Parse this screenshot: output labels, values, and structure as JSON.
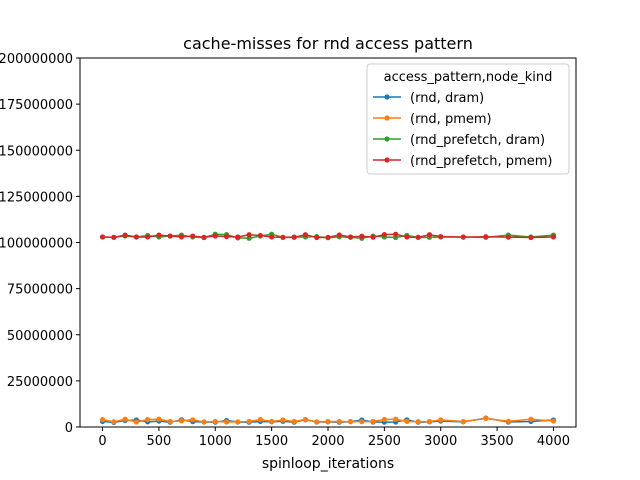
{
  "chart_data": {
    "type": "line",
    "title": "cache-misses for rnd access pattern",
    "xlabel": "spinloop_iterations",
    "ylabel": "",
    "xlim": [
      -200,
      4200
    ],
    "ylim": [
      0,
      200000000
    ],
    "xticks": [
      0,
      500,
      1000,
      1500,
      2000,
      2500,
      3000,
      3500,
      4000
    ],
    "yticks": [
      0,
      25000000,
      50000000,
      75000000,
      100000000,
      125000000,
      150000000,
      175000000,
      200000000
    ],
    "ytick_labels": [
      "0",
      "25000000",
      "50000000",
      "75000000",
      "100000000",
      "125000000",
      "150000000",
      "175000000",
      "200000000"
    ],
    "grid": false,
    "legend": {
      "title": "access_pattern,node_kind",
      "placement": "top-right"
    },
    "series": [
      {
        "name": "(rnd, dram)",
        "color": "#1f77b4",
        "x": [
          0,
          100,
          200,
          300,
          400,
          500,
          600,
          700,
          800,
          900,
          1000,
          1100,
          1200,
          1300,
          1400,
          1500,
          1600,
          1700,
          1800,
          1900,
          2000,
          2100,
          2200,
          2300,
          2400,
          2500,
          2600,
          2700,
          2800,
          2900,
          3000,
          3200,
          3400,
          3600,
          3800,
          4000
        ],
        "y": [
          3000000,
          2500000,
          3500000,
          3800000,
          2800000,
          3200000,
          2600000,
          3900000,
          2900000,
          2700000,
          2600000,
          3500000,
          2700000,
          2600000,
          3000000,
          2800000,
          3100000,
          2600000,
          3900000,
          2700000,
          2800000,
          2600000,
          2900000,
          3800000,
          2700000,
          2600000,
          2700000,
          3900000,
          2600000,
          2800000,
          3200000,
          2800000,
          4800000,
          2700000,
          3000000,
          3800000
        ]
      },
      {
        "name": "(rnd, pmem)",
        "color": "#ff7f0e",
        "x": [
          0,
          100,
          200,
          300,
          400,
          500,
          600,
          700,
          800,
          900,
          1000,
          1100,
          1200,
          1300,
          1400,
          1500,
          1600,
          1700,
          1800,
          1900,
          2000,
          2100,
          2200,
          2300,
          2400,
          2500,
          2600,
          2700,
          2800,
          2900,
          3000,
          3200,
          3400,
          3600,
          3800,
          4000
        ],
        "y": [
          4000000,
          2800000,
          4200000,
          2700000,
          4000000,
          4200000,
          3000000,
          3300000,
          3900000,
          2700000,
          3000000,
          2700000,
          2800000,
          3000000,
          4000000,
          3000000,
          3800000,
          3000000,
          4100000,
          2800000,
          3000000,
          3000000,
          2900000,
          2900000,
          3000000,
          4100000,
          4200000,
          3000000,
          2900000,
          3000000,
          3800000,
          3000000,
          4600000,
          3100000,
          4200000,
          3200000
        ]
      },
      {
        "name": "(rnd_prefetch, dram)",
        "color": "#2ca02c",
        "x": [
          0,
          100,
          200,
          300,
          400,
          500,
          600,
          700,
          800,
          900,
          1000,
          1100,
          1200,
          1300,
          1400,
          1500,
          1600,
          1700,
          1800,
          1900,
          2000,
          2100,
          2200,
          2300,
          2400,
          2500,
          2600,
          2700,
          2800,
          2900,
          3000,
          3200,
          3400,
          3600,
          3800,
          4000
        ],
        "y": [
          103000000,
          102800000,
          103500000,
          103000000,
          103800000,
          103000000,
          103500000,
          104000000,
          103000000,
          102700000,
          104500000,
          104300000,
          102500000,
          102300000,
          103500000,
          104500000,
          102800000,
          103000000,
          103000000,
          103200000,
          102600000,
          103100000,
          102800000,
          102300000,
          103500000,
          103000000,
          102700000,
          103800000,
          102800000,
          102800000,
          103000000,
          103000000,
          102800000,
          104000000,
          103000000,
          104000000
        ]
      },
      {
        "name": "(rnd_prefetch, pmem)",
        "color": "#d62728",
        "x": [
          0,
          100,
          200,
          300,
          400,
          500,
          600,
          700,
          800,
          900,
          1000,
          1100,
          1200,
          1300,
          1400,
          1500,
          1600,
          1700,
          1800,
          1900,
          2000,
          2100,
          2200,
          2300,
          2400,
          2500,
          2600,
          2700,
          2800,
          2900,
          3000,
          3200,
          3400,
          3600,
          3800,
          4000
        ],
        "y": [
          103000000,
          102800000,
          104000000,
          103000000,
          103000000,
          104000000,
          103500000,
          103000000,
          103500000,
          102800000,
          103500000,
          103200000,
          103000000,
          104200000,
          103800000,
          103000000,
          102800000,
          102800000,
          104200000,
          102700000,
          102800000,
          104100000,
          103000000,
          103400000,
          102900000,
          104300000,
          104500000,
          103000000,
          102800000,
          104200000,
          103200000,
          102900000,
          103100000,
          102900000,
          102700000,
          103000000
        ]
      }
    ]
  }
}
